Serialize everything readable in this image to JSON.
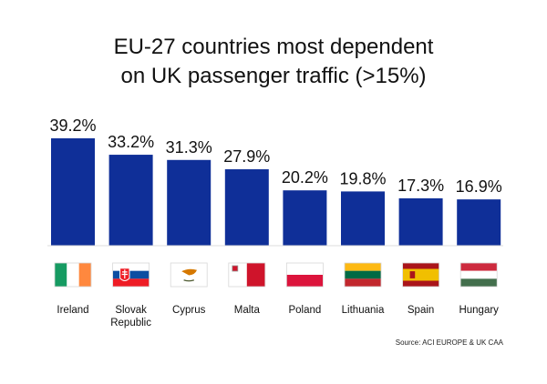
{
  "chart_data": {
    "type": "bar",
    "title": "EU-27 countries most dependent on UK passenger traffic (>15%)",
    "title_lines": [
      "EU-27 countries most dependent",
      "on UK passenger traffic (>15%)"
    ],
    "categories": [
      "Ireland",
      "Slovak Republic",
      "Cyprus",
      "Malta",
      "Poland",
      "Lithuania",
      "Spain",
      "Hungary"
    ],
    "category_lines": [
      [
        "Ireland"
      ],
      [
        "Slovak",
        "Republic"
      ],
      [
        "Cyprus"
      ],
      [
        "Malta"
      ],
      [
        "Poland"
      ],
      [
        "Lithuania"
      ],
      [
        "Spain"
      ],
      [
        "Hungary"
      ]
    ],
    "values": [
      39.2,
      33.2,
      31.3,
      27.9,
      20.2,
      19.8,
      17.3,
      16.9
    ],
    "value_labels": [
      "39.2%",
      "33.2%",
      "31.3%",
      "27.9%",
      "20.2%",
      "19.8%",
      "17.3%",
      "16.9%"
    ],
    "flags": [
      "ireland-flag",
      "slovakia-flag",
      "cyprus-flag",
      "malta-flag",
      "poland-flag",
      "lithuania-flag",
      "spain-flag",
      "hungary-flag"
    ],
    "bar_color": "#0f2f98",
    "ylim": [
      0,
      39.2
    ],
    "grid": false,
    "xlabel": "",
    "ylabel": ""
  },
  "source": "Source: ACI EUROPE & UK CAA"
}
